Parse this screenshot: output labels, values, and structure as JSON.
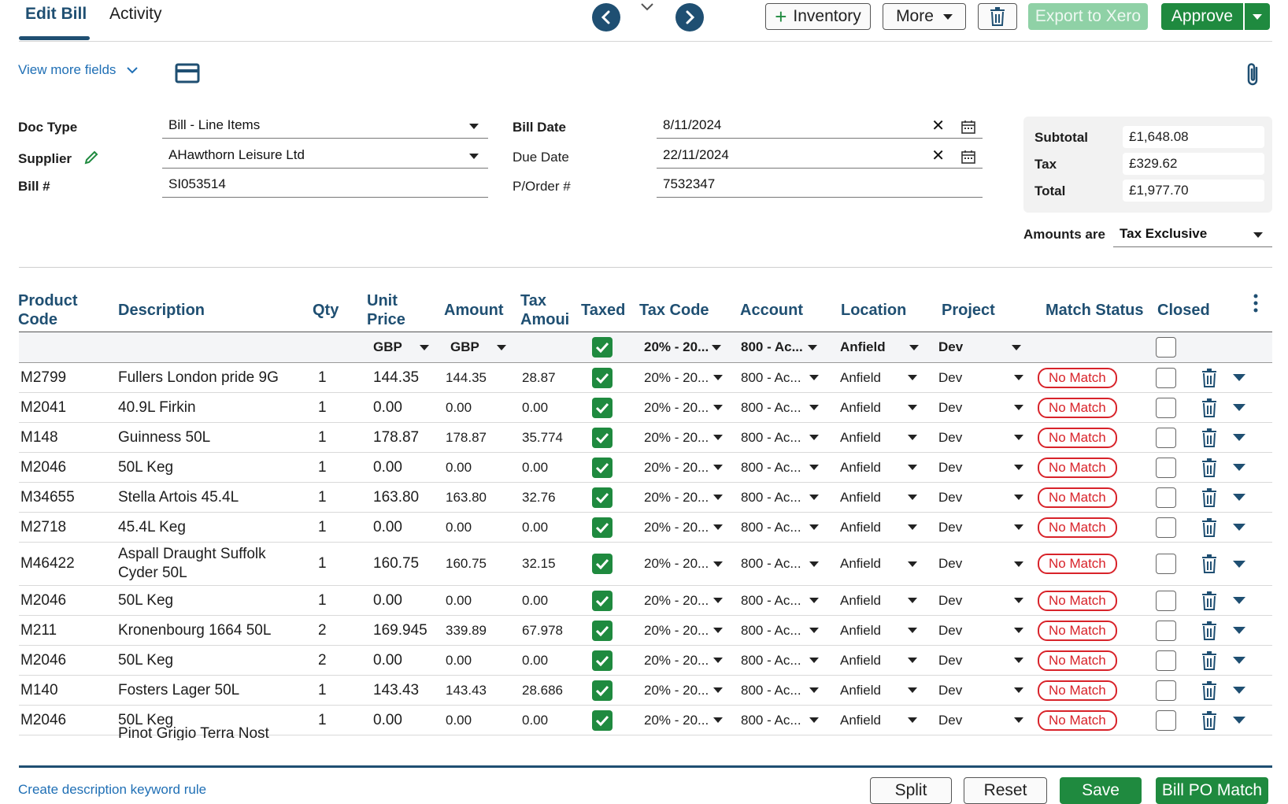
{
  "tabs": [
    {
      "label": "Edit Bill",
      "active": true
    },
    {
      "label": "Activity",
      "active": false
    }
  ],
  "toolbar": {
    "inventory_label": "Inventory",
    "more_label": "More",
    "export_label": "Export to Xero",
    "approve_label": "Approve"
  },
  "form": {
    "view_more_label": "View more fields",
    "doc_type_label": "Doc Type",
    "doc_type_value": "Bill - Line Items",
    "supplier_label": "Supplier",
    "supplier_value": "AHawthorn Leisure Ltd",
    "bill_no_label": "Bill #",
    "bill_no_value": "SI053514",
    "bill_date_label": "Bill Date",
    "bill_date_value": "8/11/2024",
    "due_date_label": "Due Date",
    "due_date_value": "22/11/2024",
    "po_label": "P/Order #",
    "po_value": "7532347"
  },
  "totals": {
    "subtotal_label": "Subtotal",
    "subtotal_value": "£1,648.08",
    "tax_label": "Tax",
    "tax_value": "£329.62",
    "total_label": "Total",
    "total_value": "£1,977.70",
    "amounts_are_label": "Amounts are",
    "amounts_are_value": "Tax Exclusive"
  },
  "table": {
    "headers": {
      "product_code_1": "Product",
      "product_code_2": "Code",
      "description": "Description",
      "qty": "Qty",
      "unit_price_1": "Unit",
      "unit_price_2": "Price",
      "amount": "Amount",
      "tax_amount_1": "Tax",
      "tax_amount_2": "Amoui",
      "taxed": "Taxed",
      "tax_code": "Tax Code",
      "account": "Account",
      "location": "Location",
      "project": "Project",
      "match_status": "Match Status",
      "closed": "Closed"
    },
    "filters": {
      "unit_price_currency": "GBP",
      "amount_currency": "GBP",
      "tax_code": "20% - 20...",
      "account": "800 - Ac...",
      "location": "Anfield",
      "project": "Dev"
    },
    "rows": [
      {
        "code": "M2799",
        "desc": "Fullers London pride 9G",
        "desc2": "",
        "qty": "1",
        "price": "144.35",
        "amount": "144.35",
        "tax": "28.87",
        "tax_code": "20% - 20...",
        "account": "800 - Ac...",
        "location": "Anfield",
        "project": "Dev",
        "match": "No Match"
      },
      {
        "code": "M2041",
        "desc": "40.9L Firkin",
        "desc2": "",
        "qty": "1",
        "price": "0.00",
        "amount": "0.00",
        "tax": "0.00",
        "tax_code": "20% - 20...",
        "account": "800 - Ac...",
        "location": "Anfield",
        "project": "Dev",
        "match": "No Match"
      },
      {
        "code": "M148",
        "desc": "Guinness  50L",
        "desc2": "",
        "qty": "1",
        "price": "178.87",
        "amount": "178.87",
        "tax": "35.774",
        "tax_code": "20% - 20...",
        "account": "800 - Ac...",
        "location": "Anfield",
        "project": "Dev",
        "match": "No Match"
      },
      {
        "code": "M2046",
        "desc": "50L Keg",
        "desc2": "",
        "qty": "1",
        "price": "0.00",
        "amount": "0.00",
        "tax": "0.00",
        "tax_code": "20% - 20...",
        "account": "800 - Ac...",
        "location": "Anfield",
        "project": "Dev",
        "match": "No Match"
      },
      {
        "code": "M34655",
        "desc": "Stella Artois  45.4L",
        "desc2": "",
        "qty": "1",
        "price": "163.80",
        "amount": "163.80",
        "tax": "32.76",
        "tax_code": "20% - 20...",
        "account": "800 - Ac...",
        "location": "Anfield",
        "project": "Dev",
        "match": "No Match"
      },
      {
        "code": "M2718",
        "desc": "45.4L Keg",
        "desc2": "",
        "qty": "1",
        "price": "0.00",
        "amount": "0.00",
        "tax": "0.00",
        "tax_code": "20% - 20...",
        "account": "800 - Ac...",
        "location": "Anfield",
        "project": "Dev",
        "match": "No Match"
      },
      {
        "code": "M46422",
        "desc": "Aspall Draught Suffolk",
        "desc2": "Cyder 50L",
        "qty": "1",
        "price": "160.75",
        "amount": "160.75",
        "tax": "32.15",
        "tax_code": "20% - 20...",
        "account": "800 - Ac...",
        "location": "Anfield",
        "project": "Dev",
        "match": "No Match"
      },
      {
        "code": "M2046",
        "desc": "50L Keg",
        "desc2": "",
        "qty": "1",
        "price": "0.00",
        "amount": "0.00",
        "tax": "0.00",
        "tax_code": "20% - 20...",
        "account": "800 - Ac...",
        "location": "Anfield",
        "project": "Dev",
        "match": "No Match"
      },
      {
        "code": "M211",
        "desc": "Kronenbourg 1664  50L",
        "desc2": "",
        "qty": "2",
        "price": "169.945",
        "amount": "339.89",
        "tax": "67.978",
        "tax_code": "20% - 20...",
        "account": "800 - Ac...",
        "location": "Anfield",
        "project": "Dev",
        "match": "No Match"
      },
      {
        "code": "M2046",
        "desc": "50L Keg",
        "desc2": "",
        "qty": "2",
        "price": "0.00",
        "amount": "0.00",
        "tax": "0.00",
        "tax_code": "20% - 20...",
        "account": "800 - Ac...",
        "location": "Anfield",
        "project": "Dev",
        "match": "No Match"
      },
      {
        "code": "M140",
        "desc": "Fosters Lager  50L",
        "desc2": "",
        "qty": "1",
        "price": "143.43",
        "amount": "143.43",
        "tax": "28.686",
        "tax_code": "20% - 20...",
        "account": "800 - Ac...",
        "location": "Anfield",
        "project": "Dev",
        "match": "No Match"
      },
      {
        "code": "M2046",
        "desc": "50L Keg",
        "desc2": "",
        "qty": "1",
        "price": "0.00",
        "amount": "0.00",
        "tax": "0.00",
        "tax_code": "20% - 20...",
        "account": "800 - Ac...",
        "location": "Anfield",
        "project": "Dev",
        "match": "No Match"
      }
    ],
    "partial_row_desc": "Pinot Grigio Terra Nost"
  },
  "footer": {
    "keyword_rule_label": "Create description keyword rule",
    "split_label": "Split",
    "reset_label": "Reset",
    "save_label": "Save",
    "po_match_label": "Bill PO Match"
  },
  "colors": {
    "primary": "#1f4f72",
    "green": "#1f8a3f",
    "red": "#d8232a",
    "link": "#1f6fb5"
  }
}
